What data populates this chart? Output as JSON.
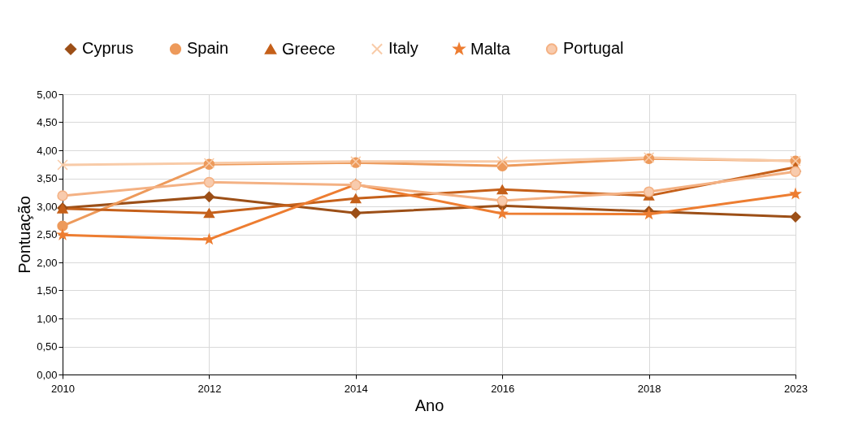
{
  "chart_data": {
    "type": "line",
    "categories": [
      "2010",
      "2012",
      "2014",
      "2016",
      "2018",
      "2023"
    ],
    "series": [
      {
        "name": "Cyprus",
        "color": "#9c4f17",
        "marker": "diamond",
        "values": [
          2.97,
          3.17,
          2.88,
          3.01,
          2.91,
          2.81
        ]
      },
      {
        "name": "Spain",
        "color": "#ed9a5b",
        "marker": "circle",
        "values": [
          2.65,
          3.75,
          3.78,
          3.72,
          3.85,
          3.81
        ]
      },
      {
        "name": "Greece",
        "color": "#c5601a",
        "marker": "triangle",
        "values": [
          2.96,
          2.88,
          3.14,
          3.3,
          3.19,
          3.7
        ]
      },
      {
        "name": "Italy",
        "color": "#f8cba8",
        "marker": "cross",
        "values": [
          3.74,
          3.77,
          3.8,
          3.8,
          3.87,
          3.81
        ]
      },
      {
        "name": "Malta",
        "color": "#ed7d31",
        "marker": "star",
        "values": [
          2.49,
          2.41,
          3.39,
          2.87,
          2.86,
          3.22
        ]
      },
      {
        "name": "Portugal",
        "color": "#f4b183",
        "marker": "circle",
        "values": [
          3.19,
          3.43,
          3.38,
          3.1,
          3.26,
          3.62
        ]
      }
    ],
    "xlabel": "Ano",
    "ylabel": "Pontuação",
    "ylim": [
      0,
      5
    ],
    "yticks": [
      {
        "value": 0,
        "label": "0,00"
      },
      {
        "value": 0.5,
        "label": "0,50"
      },
      {
        "value": 1,
        "label": "1,00"
      },
      {
        "value": 1.5,
        "label": "1,50"
      },
      {
        "value": 2,
        "label": "2,00"
      },
      {
        "value": 2.5,
        "label": "2,50"
      },
      {
        "value": 3,
        "label": "3,00"
      },
      {
        "value": 3.5,
        "label": "3,50"
      },
      {
        "value": 4,
        "label": "4,00"
      },
      {
        "value": 4.5,
        "label": "4,50"
      },
      {
        "value": 5,
        "label": "5,00"
      }
    ],
    "grid": true,
    "legend": "top",
    "line_style": "solid"
  }
}
